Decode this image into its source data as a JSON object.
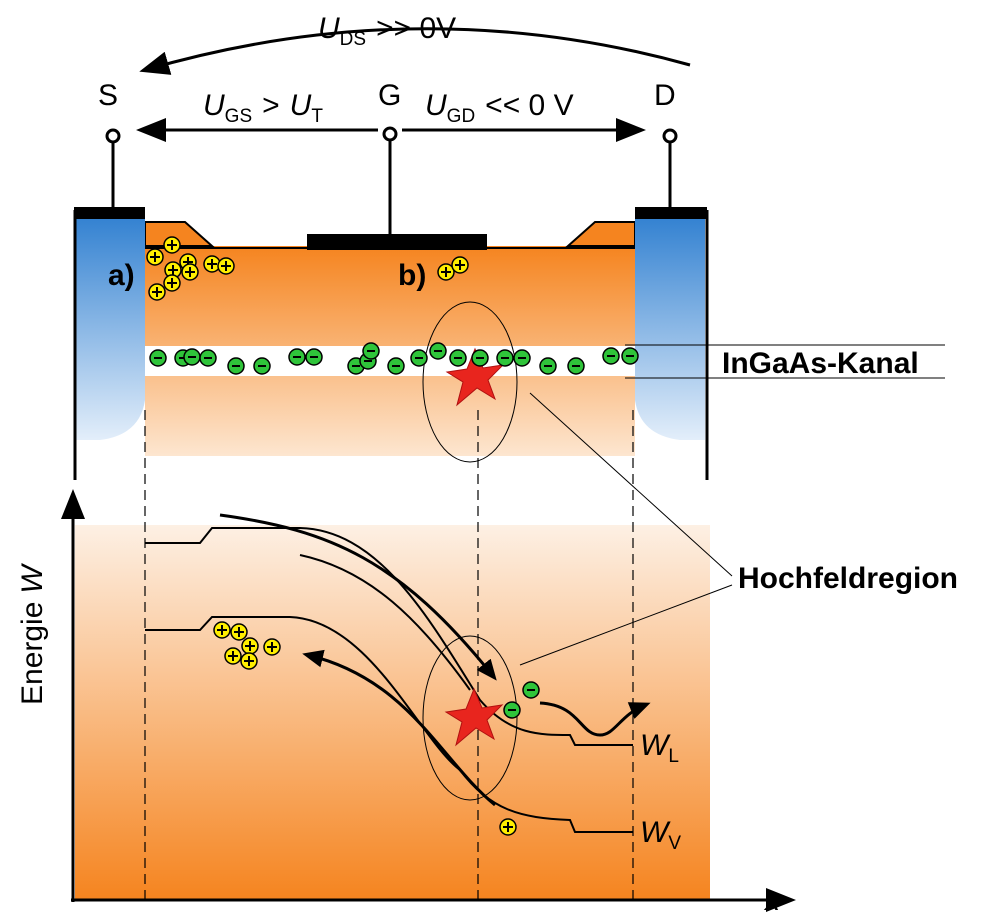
{
  "voltages": {
    "uds": {
      "symbol": "U",
      "sub": "DS",
      "rest": ">> 0V"
    },
    "ugs": {
      "symbol": "U",
      "sub": "GS",
      "rest": ">",
      "symbol2": "U",
      "sub2": "T"
    },
    "ugd": {
      "symbol": "U",
      "sub": "GD",
      "rest": "<< 0 V"
    }
  },
  "terminals": {
    "source": "S",
    "gate": "G",
    "drain": "D"
  },
  "labels": {
    "a": "a)",
    "b": "b)",
    "channel": "InGaAs-Kanal",
    "region": "Hochfeldregion"
  },
  "axes": {
    "y_label": "Energie",
    "y_symbol": "W",
    "x_symbol": "x"
  },
  "bands": {
    "conduction": {
      "symbol": "W",
      "sub": "L"
    },
    "valence": {
      "symbol": "W",
      "sub": "V"
    }
  }
}
